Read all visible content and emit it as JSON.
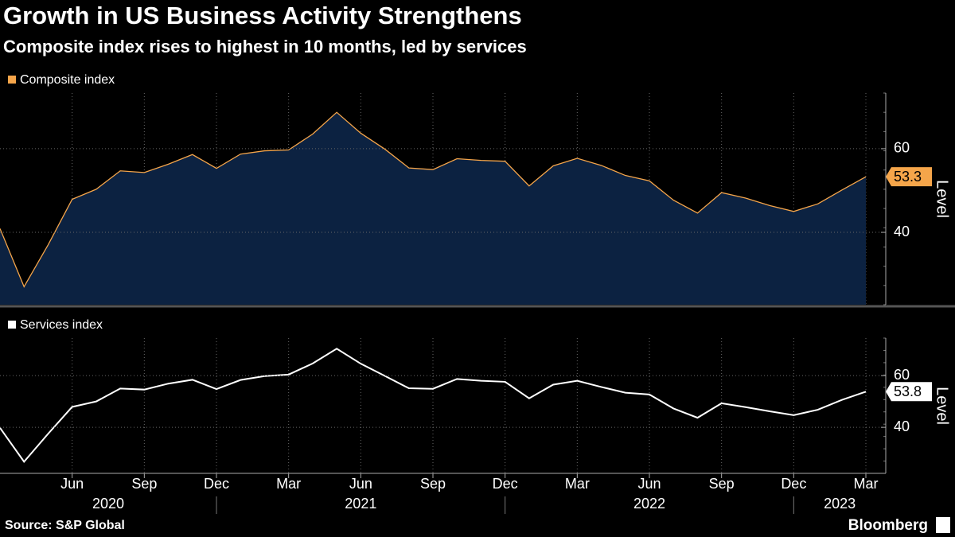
{
  "title": "Growth in US Business Activity Strengthens",
  "subtitle": "Composite index rises to highest in 10 months, led by services",
  "source": "Source: S&P Global",
  "brand": "Bloomberg",
  "x": [
    "2020-03",
    "2020-04",
    "2020-05",
    "2020-06",
    "2020-07",
    "2020-08",
    "2020-09",
    "2020-10",
    "2020-11",
    "2020-12",
    "2021-01",
    "2021-02",
    "2021-03",
    "2021-04",
    "2021-05",
    "2021-06",
    "2021-07",
    "2021-08",
    "2021-09",
    "2021-10",
    "2021-11",
    "2021-12",
    "2022-01",
    "2022-02",
    "2022-03",
    "2022-04",
    "2022-05",
    "2022-06",
    "2022-07",
    "2022-08",
    "2022-09",
    "2022-10",
    "2022-11",
    "2022-12",
    "2023-01",
    "2023-02",
    "2023-03"
  ],
  "xticks": [
    {
      "value": "2020-06",
      "label": "Jun"
    },
    {
      "value": "2020-09",
      "label": "Sep"
    },
    {
      "value": "2020-12",
      "label": "Dec"
    },
    {
      "value": "2021-03",
      "label": "Mar"
    },
    {
      "value": "2021-06",
      "label": "Jun"
    },
    {
      "value": "2021-09",
      "label": "Sep"
    },
    {
      "value": "2021-12",
      "label": "Dec"
    },
    {
      "value": "2022-03",
      "label": "Mar"
    },
    {
      "value": "2022-06",
      "label": "Jun"
    },
    {
      "value": "2022-09",
      "label": "Sep"
    },
    {
      "value": "2022-12",
      "label": "Dec"
    },
    {
      "value": "2023-03",
      "label": "Mar"
    }
  ],
  "year_labels": [
    "2020",
    "2021",
    "2022",
    "2023"
  ],
  "chart_data": [
    {
      "type": "area",
      "ylabel": "Level",
      "ylim": [
        22.7,
        73.3
      ],
      "yticks": [
        40,
        60
      ],
      "grid": true,
      "series": [
        {
          "name": "Composite index",
          "color": "#f5a54a",
          "fill": "#0c2241",
          "values": [
            40.9,
            27.0,
            37.0,
            47.9,
            50.3,
            54.7,
            54.3,
            56.3,
            58.6,
            55.3,
            58.7,
            59.5,
            59.7,
            63.5,
            68.7,
            63.7,
            59.9,
            55.4,
            55.0,
            57.6,
            57.2,
            57.0,
            51.1,
            55.9,
            57.7,
            56.0,
            53.6,
            52.3,
            47.7,
            44.6,
            49.5,
            48.2,
            46.4,
            45.0,
            46.8,
            50.1,
            53.3
          ]
        }
      ]
    },
    {
      "type": "line",
      "ylabel": "Level",
      "ylim": [
        22.2,
        74.5
      ],
      "yticks": [
        40,
        60
      ],
      "grid": true,
      "series": [
        {
          "name": "Services index",
          "color": "#ffffff",
          "values": [
            39.8,
            26.7,
            37.5,
            47.9,
            50.0,
            55.0,
            54.6,
            56.9,
            58.4,
            54.8,
            58.3,
            59.8,
            60.4,
            64.7,
            70.4,
            64.6,
            59.9,
            55.1,
            54.9,
            58.7,
            58.0,
            57.6,
            51.2,
            56.5,
            58.0,
            55.6,
            53.4,
            52.7,
            47.3,
            43.7,
            49.3,
            47.8,
            46.2,
            44.7,
            46.8,
            50.6,
            53.8
          ]
        }
      ]
    }
  ]
}
